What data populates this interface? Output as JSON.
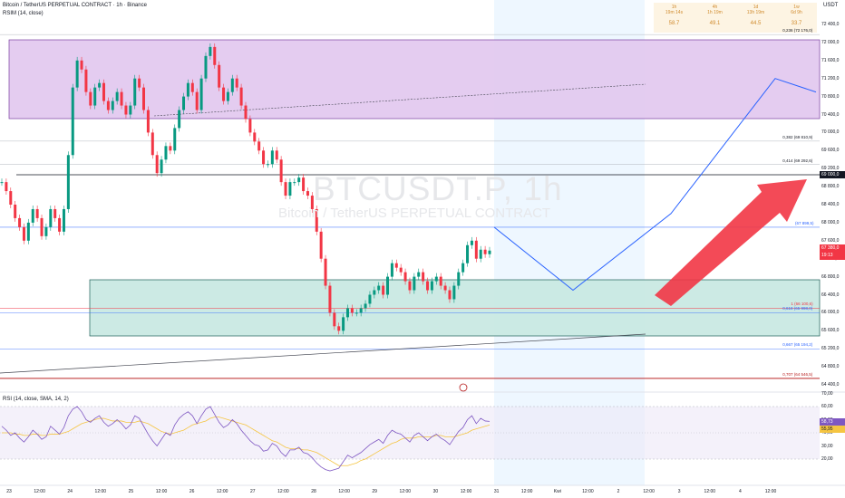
{
  "header": {
    "symbol_line": "Bitcoin / TetherUS PERPETUAL CONTRACT · 1h · Binance",
    "indicator_line": "RSIM (14, close)",
    "rsi_label": "RSI (14, close, SMA, 14, 2)",
    "currency": "USDT"
  },
  "rsim_table": [
    {
      "tf": "1h",
      "time": "19m 14s",
      "value": "58.7"
    },
    {
      "tf": "4h",
      "time": "1h 19m",
      "value": "49.1"
    },
    {
      "tf": "1d",
      "time": "13h 19m",
      "value": "44.5"
    },
    {
      "tf": "1w",
      "time": "6d 9h",
      "value": "33.7"
    }
  ],
  "watermark": {
    "ticker": "BTCUSDT.P, 1h",
    "name": "Bitcoin / TetherUS PERPETUAL CONTRACT"
  },
  "badges": {
    "last_price": "67 380,0",
    "countdown": "19:13",
    "rsi_value": "58,73",
    "rsi_sma": "55,95",
    "fib_level_price": "69 000,0"
  },
  "fib_labels": [
    {
      "text": "0,236 (72 176,0)",
      "price": 72176,
      "color": "#131722"
    },
    {
      "text": "0,382 (69 810,9)",
      "price": 69810.9,
      "color": "#131722"
    },
    {
      "text": "0,414 (69 292,6)",
      "price": 69292.6,
      "color": "#131722"
    },
    {
      "text": "(67 899,5)",
      "price": 67899.5,
      "color": "#2962ff"
    },
    {
      "text": "1 (66 100,6)",
      "price": 66100.6,
      "color": "#f23645"
    },
    {
      "text": "0,618 (65 998,0)",
      "price": 65998,
      "color": "#2962ff"
    },
    {
      "text": "0,667 (65 194,2)",
      "price": 65194.2,
      "color": "#2962ff"
    },
    {
      "text": "0,707 (64 546,5)",
      "price": 64546.5,
      "color": "#b71c1c"
    }
  ],
  "chart_data": {
    "type": "line",
    "title": "Bitcoin / TetherUS PERPETUAL CONTRACT · 1h · Binance",
    "ylim": [
      64400,
      72400
    ],
    "y_ticks": [
      "72 400,0",
      "72 000,0",
      "71 600,0",
      "71 200,0",
      "70 800,0",
      "70 400,0",
      "70 000,0",
      "69 600,0",
      "69 200,0",
      "68 800,0",
      "68 400,0",
      "68 000,0",
      "67 600,0",
      "67 200,0",
      "66 800,0",
      "66 400,0",
      "66 000,0",
      "65 600,0",
      "65 200,0",
      "64 800,0",
      "64 400,0"
    ],
    "y_tick_values": [
      72400,
      72000,
      71600,
      71200,
      70800,
      70400,
      70000,
      69600,
      69200,
      68800,
      68400,
      68000,
      67600,
      67200,
      66800,
      66400,
      66000,
      65600,
      65200,
      64800,
      64400
    ],
    "x_ticks": [
      "23",
      "12:00",
      "24",
      "12:00",
      "25",
      "12:00",
      "26",
      "12:00",
      "27",
      "12:00",
      "28",
      "12:00",
      "29",
      "12:00",
      "30",
      "12:00",
      "31",
      "12:00",
      "Kwi",
      "12:00",
      "2",
      "12:00",
      "3",
      "12:00",
      "4",
      "12:00"
    ],
    "price_series": {
      "name": "BTCUSDT.P",
      "values": [
        68900,
        68700,
        68400,
        68100,
        67900,
        67600,
        68000,
        68300,
        68100,
        67700,
        67900,
        68300,
        68100,
        67800,
        68300,
        69500,
        71000,
        71600,
        71400,
        70900,
        70600,
        71000,
        71100,
        70700,
        70500,
        70700,
        70900,
        70600,
        70400,
        70600,
        71200,
        71000,
        70500,
        70000,
        69500,
        69100,
        69400,
        69700,
        69600,
        70100,
        70500,
        70800,
        71100,
        70900,
        70500,
        71200,
        71700,
        71900,
        71500,
        71000,
        70700,
        70900,
        71200,
        71000,
        70600,
        70300,
        70000,
        69800,
        69600,
        69300,
        69300,
        69600,
        69400,
        68900,
        68600,
        68900,
        68900,
        69000,
        68700,
        68600,
        68300,
        67800,
        67200,
        66600,
        66000,
        65700,
        65600,
        65900,
        66100,
        66000,
        66000,
        66100,
        66200,
        66400,
        66500,
        66600,
        66400,
        66800,
        67100,
        67000,
        66900,
        66700,
        66500,
        66800,
        66900,
        66700,
        66500,
        66700,
        66800,
        66600,
        66500,
        66300,
        66600,
        66900,
        67100,
        67500,
        67600,
        67200,
        67400,
        67300,
        67380
      ],
      "color": "#089981"
    },
    "projection": {
      "name": "projection",
      "points": [
        [
          67900,
          0
        ],
        [
          66500,
          1
        ],
        [
          68200,
          2
        ],
        [
          71200,
          3
        ],
        [
          70900,
          4
        ]
      ],
      "color": "#2962ff"
    },
    "rsi": {
      "name": "RSI",
      "ylim": [
        20,
        75
      ],
      "y_ticks": [
        "70,00",
        "60,00",
        "50,00",
        "40,00",
        "30,00",
        "20,00"
      ],
      "y_tick_values": [
        70,
        60,
        50,
        40,
        30,
        20
      ],
      "values": [
        55,
        52,
        48,
        50,
        46,
        43,
        47,
        52,
        49,
        45,
        47,
        55,
        52,
        49,
        54,
        63,
        68,
        70,
        66,
        60,
        58,
        61,
        63,
        58,
        55,
        57,
        60,
        57,
        53,
        56,
        63,
        61,
        55,
        49,
        44,
        40,
        45,
        50,
        48,
        56,
        61,
        64,
        66,
        63,
        57,
        63,
        68,
        70,
        64,
        58,
        54,
        56,
        60,
        57,
        52,
        48,
        44,
        41,
        40,
        36,
        37,
        42,
        40,
        35,
        32,
        37,
        37,
        39,
        35,
        34,
        31,
        27,
        24,
        22,
        21,
        22,
        23,
        28,
        33,
        31,
        33,
        35,
        38,
        41,
        43,
        45,
        42,
        48,
        52,
        50,
        49,
        46,
        43,
        48,
        50,
        47,
        44,
        47,
        49,
        46,
        44,
        41,
        46,
        51,
        54,
        60,
        63,
        57,
        61,
        59,
        58.73
      ],
      "sma": [
        50,
        50,
        50,
        49,
        49,
        48,
        48,
        49,
        49,
        48,
        48,
        49,
        49,
        49,
        50,
        51,
        53,
        55,
        57,
        58,
        59,
        60,
        61,
        61,
        60,
        59,
        59,
        59,
        58,
        58,
        58,
        59,
        58,
        57,
        55,
        53,
        51,
        50,
        49,
        50,
        51,
        52,
        54,
        56,
        57,
        58,
        59,
        61,
        62,
        62,
        61,
        60,
        59,
        58,
        57,
        56,
        54,
        52,
        50,
        48,
        46,
        44,
        43,
        41,
        39,
        38,
        38,
        38,
        37,
        37,
        36,
        35,
        33,
        31,
        29,
        27,
        25,
        25,
        25,
        26,
        27,
        29,
        30,
        32,
        34,
        36,
        38,
        40,
        42,
        43,
        45,
        46,
        46,
        46,
        47,
        47,
        47,
        47,
        48,
        48,
        47,
        47,
        47,
        48,
        49,
        50,
        52,
        53,
        54,
        55,
        55.95
      ]
    }
  }
}
